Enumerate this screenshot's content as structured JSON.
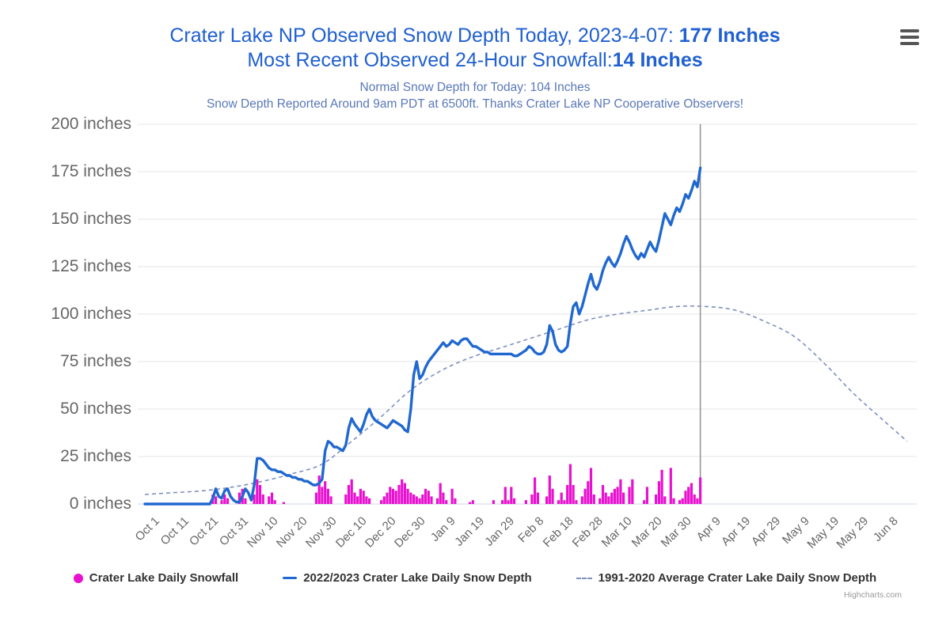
{
  "header": {
    "title_line1_prefix": "Crater Lake NP Observed Snow Depth Today, 2023-4-07: ",
    "title_line1_bold": "177 Inches",
    "title_line2_prefix": "Most Recent Observed 24-Hour Snowfall:",
    "title_line2_bold": "14 Inches",
    "subtitle_line1": "Normal Snow Depth for Today: 104 Inches",
    "subtitle_line2": "Snow Depth Reported Around 9am PDT at 6500ft. Thanks Crater Lake NP Cooperative Observers!"
  },
  "menu_icon": "hamburger-context-menu",
  "credits": "Highcharts.com",
  "colors": {
    "title": "#2060d0",
    "subtitle": "#5a78b8",
    "axis_labels": "#666666",
    "depth_line": "#2068d0",
    "average_line": "#7f90c0",
    "snowfall_bars": "#e811cf",
    "gridline": "#e6e6e6",
    "axis_line": "#cdd7ea",
    "today_line": "#8f8f8f",
    "legend_text": "#333333",
    "credits": "#999999",
    "menu_icon": "#555555"
  },
  "y_axis": {
    "labels": [
      "0 inches",
      "25 inches",
      "50 inches",
      "75 inches",
      "100 inches",
      "125 inches",
      "150 inches",
      "175 inches",
      "200 inches"
    ],
    "min": 0,
    "max": 200,
    "step": 25
  },
  "x_axis": {
    "tick_labels": [
      "Oct 1",
      "Oct 11",
      "Oct 21",
      "Oct 31",
      "Nov 10",
      "Nov 20",
      "Nov 30",
      "Dec 10",
      "Dec 20",
      "Dec 30",
      "Jan 9",
      "Jan 19",
      "Jan 29",
      "Feb 8",
      "Feb 18",
      "Feb 28",
      "Mar 10",
      "Mar 20",
      "Mar 30",
      "Apr 9",
      "Apr 19",
      "Apr 29",
      "May 9",
      "May 19",
      "May 29",
      "Jun 8"
    ],
    "tick_interval_days": 10
  },
  "legend": [
    {
      "label": "Crater Lake Daily Snowfall",
      "marker": "circle",
      "color": "#e811cf"
    },
    {
      "label": "2022/2023 Crater Lake Daily Snow Depth",
      "marker": "line",
      "color": "#2068d0"
    },
    {
      "label": "1991-2020 Average Crater Lake Daily Snow Depth",
      "marker": "dashed-line",
      "color": "#7f90c0"
    }
  ],
  "chart_data": {
    "type": "line",
    "title": "Crater Lake NP Observed Snow Depth Today, 2023-4-07: 177 Inches",
    "ylabel": "inches",
    "ylim": [
      0,
      200
    ],
    "grid": "horizontal-only",
    "legend_position": "bottom-center",
    "x_start_date": "Oct 1",
    "x_last_data_date": "Apr 7",
    "today_day_index": 188,
    "today_value_inches": 177,
    "normal_today_inches": 104,
    "last_24h_snowfall_inches": 14,
    "series": [
      {
        "name": "Crater Lake Daily Snowfall",
        "type": "bar",
        "daily_from": "Oct 1",
        "values": [
          0,
          0,
          0,
          0,
          0,
          0,
          0,
          0,
          0,
          0,
          0,
          0,
          0,
          0,
          0,
          0,
          0,
          0,
          0,
          0,
          0,
          0,
          0,
          5,
          4,
          0,
          2,
          5,
          3,
          0,
          0,
          0,
          6,
          8,
          3,
          0,
          0,
          5,
          13,
          10,
          5,
          0,
          4,
          6,
          2,
          0,
          0,
          1,
          0,
          0,
          0,
          0,
          0,
          0,
          0,
          0,
          0,
          0,
          6,
          15,
          9,
          12,
          8,
          4,
          0,
          0,
          0,
          0,
          5,
          10,
          13,
          6,
          4,
          8,
          7,
          4,
          3,
          0,
          0,
          0,
          2,
          4,
          6,
          9,
          8,
          7,
          10,
          13,
          11,
          8,
          6,
          5,
          4,
          3,
          5,
          8,
          7,
          4,
          0,
          3,
          11,
          6,
          2,
          0,
          8,
          3,
          0,
          0,
          0,
          0,
          1,
          2,
          0,
          0,
          0,
          0,
          0,
          0,
          2,
          0,
          0,
          2,
          9,
          2,
          9,
          3,
          0,
          0,
          0,
          2,
          0,
          5,
          14,
          6,
          0,
          0,
          4,
          15,
          8,
          0,
          2,
          6,
          2,
          10,
          21,
          10,
          2,
          0,
          4,
          8,
          12,
          19,
          5,
          0,
          3,
          10,
          6,
          4,
          6,
          8,
          9,
          13,
          6,
          0,
          9,
          13,
          0,
          0,
          0,
          2,
          9,
          0,
          0,
          5,
          12,
          18,
          4,
          0,
          19,
          3,
          0,
          2,
          3,
          7,
          9,
          11,
          5,
          3,
          14
        ]
      },
      {
        "name": "2022/2023 Crater Lake Daily Snow Depth",
        "type": "line",
        "daily_from": "Oct 1",
        "values": [
          0,
          0,
          0,
          0,
          0,
          0,
          0,
          0,
          0,
          0,
          0,
          0,
          0,
          0,
          0,
          0,
          0,
          0,
          0,
          0,
          0,
          0,
          0,
          3,
          8,
          4,
          3,
          7,
          8,
          4,
          2,
          1,
          1,
          4,
          8,
          6,
          2,
          10,
          24,
          24,
          23,
          21,
          19,
          18,
          18,
          17,
          17,
          16,
          15,
          15,
          14,
          14,
          13,
          13,
          12,
          12,
          11,
          10,
          10,
          11,
          13,
          28,
          33,
          32,
          30,
          30,
          29,
          28,
          31,
          40,
          45,
          42,
          40,
          38,
          42,
          47,
          50,
          46,
          44,
          43,
          42,
          41,
          40,
          42,
          44,
          43,
          42,
          41,
          39,
          38,
          50,
          68,
          75,
          66,
          68,
          72,
          75,
          77,
          79,
          81,
          83,
          85,
          83,
          84,
          86,
          85,
          84,
          86,
          87,
          87,
          85,
          83,
          83,
          82,
          81,
          80,
          80,
          79,
          79,
          79,
          79,
          79,
          79,
          79,
          79,
          78,
          78,
          79,
          80,
          81,
          83,
          82,
          80,
          79,
          79,
          80,
          84,
          94,
          91,
          84,
          81,
          80,
          81,
          83,
          95,
          104,
          106,
          100,
          104,
          110,
          116,
          121,
          115,
          113,
          117,
          123,
          127,
          130,
          127,
          125,
          128,
          132,
          137,
          141,
          138,
          134,
          131,
          129,
          132,
          130,
          134,
          138,
          135,
          133,
          139,
          146,
          153,
          150,
          147,
          152,
          156,
          154,
          158,
          163,
          161,
          165,
          170,
          167,
          177
        ]
      },
      {
        "name": "1991-2020 Average Crater Lake Daily Snow Depth",
        "type": "line",
        "dashed": true,
        "points_day_value": [
          [
            0,
            5
          ],
          [
            10,
            6
          ],
          [
            20,
            7
          ],
          [
            30,
            9
          ],
          [
            40,
            12
          ],
          [
            50,
            16
          ],
          [
            60,
            21
          ],
          [
            70,
            33
          ],
          [
            80,
            46
          ],
          [
            90,
            60
          ],
          [
            100,
            70
          ],
          [
            110,
            77
          ],
          [
            120,
            82
          ],
          [
            130,
            87
          ],
          [
            140,
            92
          ],
          [
            150,
            97
          ],
          [
            160,
            100
          ],
          [
            170,
            102
          ],
          [
            180,
            104
          ],
          [
            190,
            104
          ],
          [
            200,
            102
          ],
          [
            210,
            96
          ],
          [
            220,
            88
          ],
          [
            230,
            74
          ],
          [
            240,
            58
          ],
          [
            250,
            44
          ],
          [
            258,
            33
          ]
        ]
      }
    ]
  }
}
